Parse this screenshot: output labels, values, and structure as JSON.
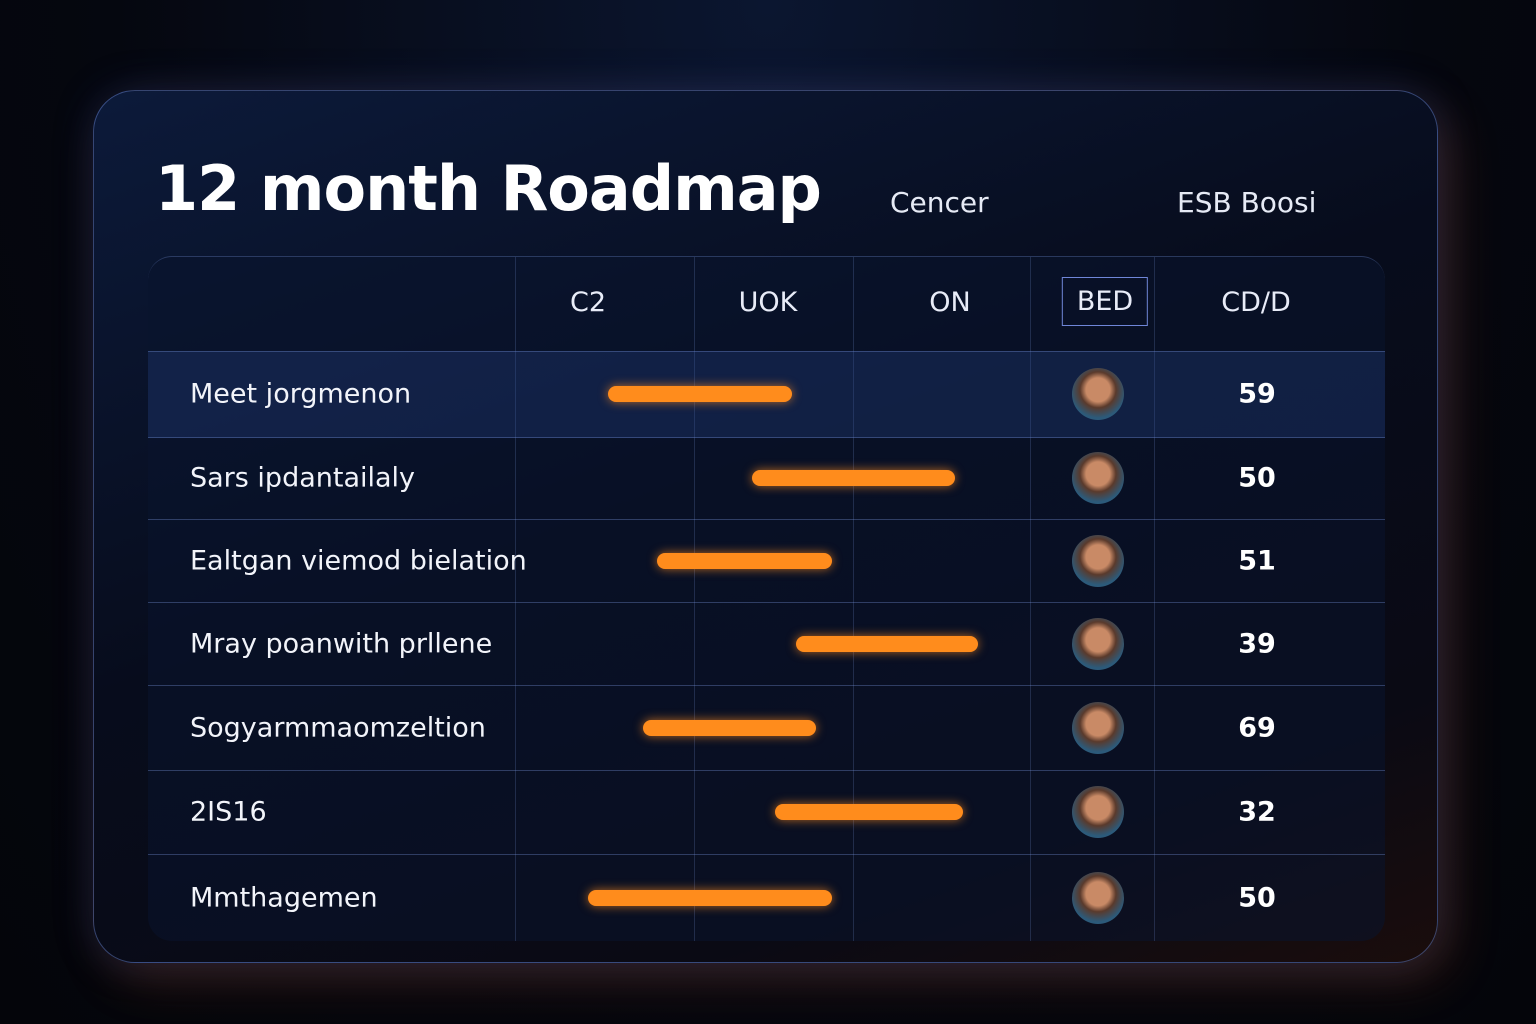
{
  "header": {
    "title": "12 month Roadmap",
    "links": [
      "Cencer",
      "ESB Boosi"
    ]
  },
  "table": {
    "columns": [
      "C2",
      "UOK",
      "ON",
      "BED",
      "CD/D"
    ],
    "rows": [
      {
        "label": "Meet jorgmenon",
        "score": "59"
      },
      {
        "label": "Sars ipdantailaly",
        "score": "50"
      },
      {
        "label": "Ealtgan viemod bielation",
        "score": "51"
      },
      {
        "label": "Mray poanwith prllene",
        "score": "39"
      },
      {
        "label": "Sogyarmmaomzeltion",
        "score": "69"
      },
      {
        "label": "2IS16",
        "score": "32"
      },
      {
        "label": "Mmthagemen",
        "score": "50"
      }
    ]
  }
}
